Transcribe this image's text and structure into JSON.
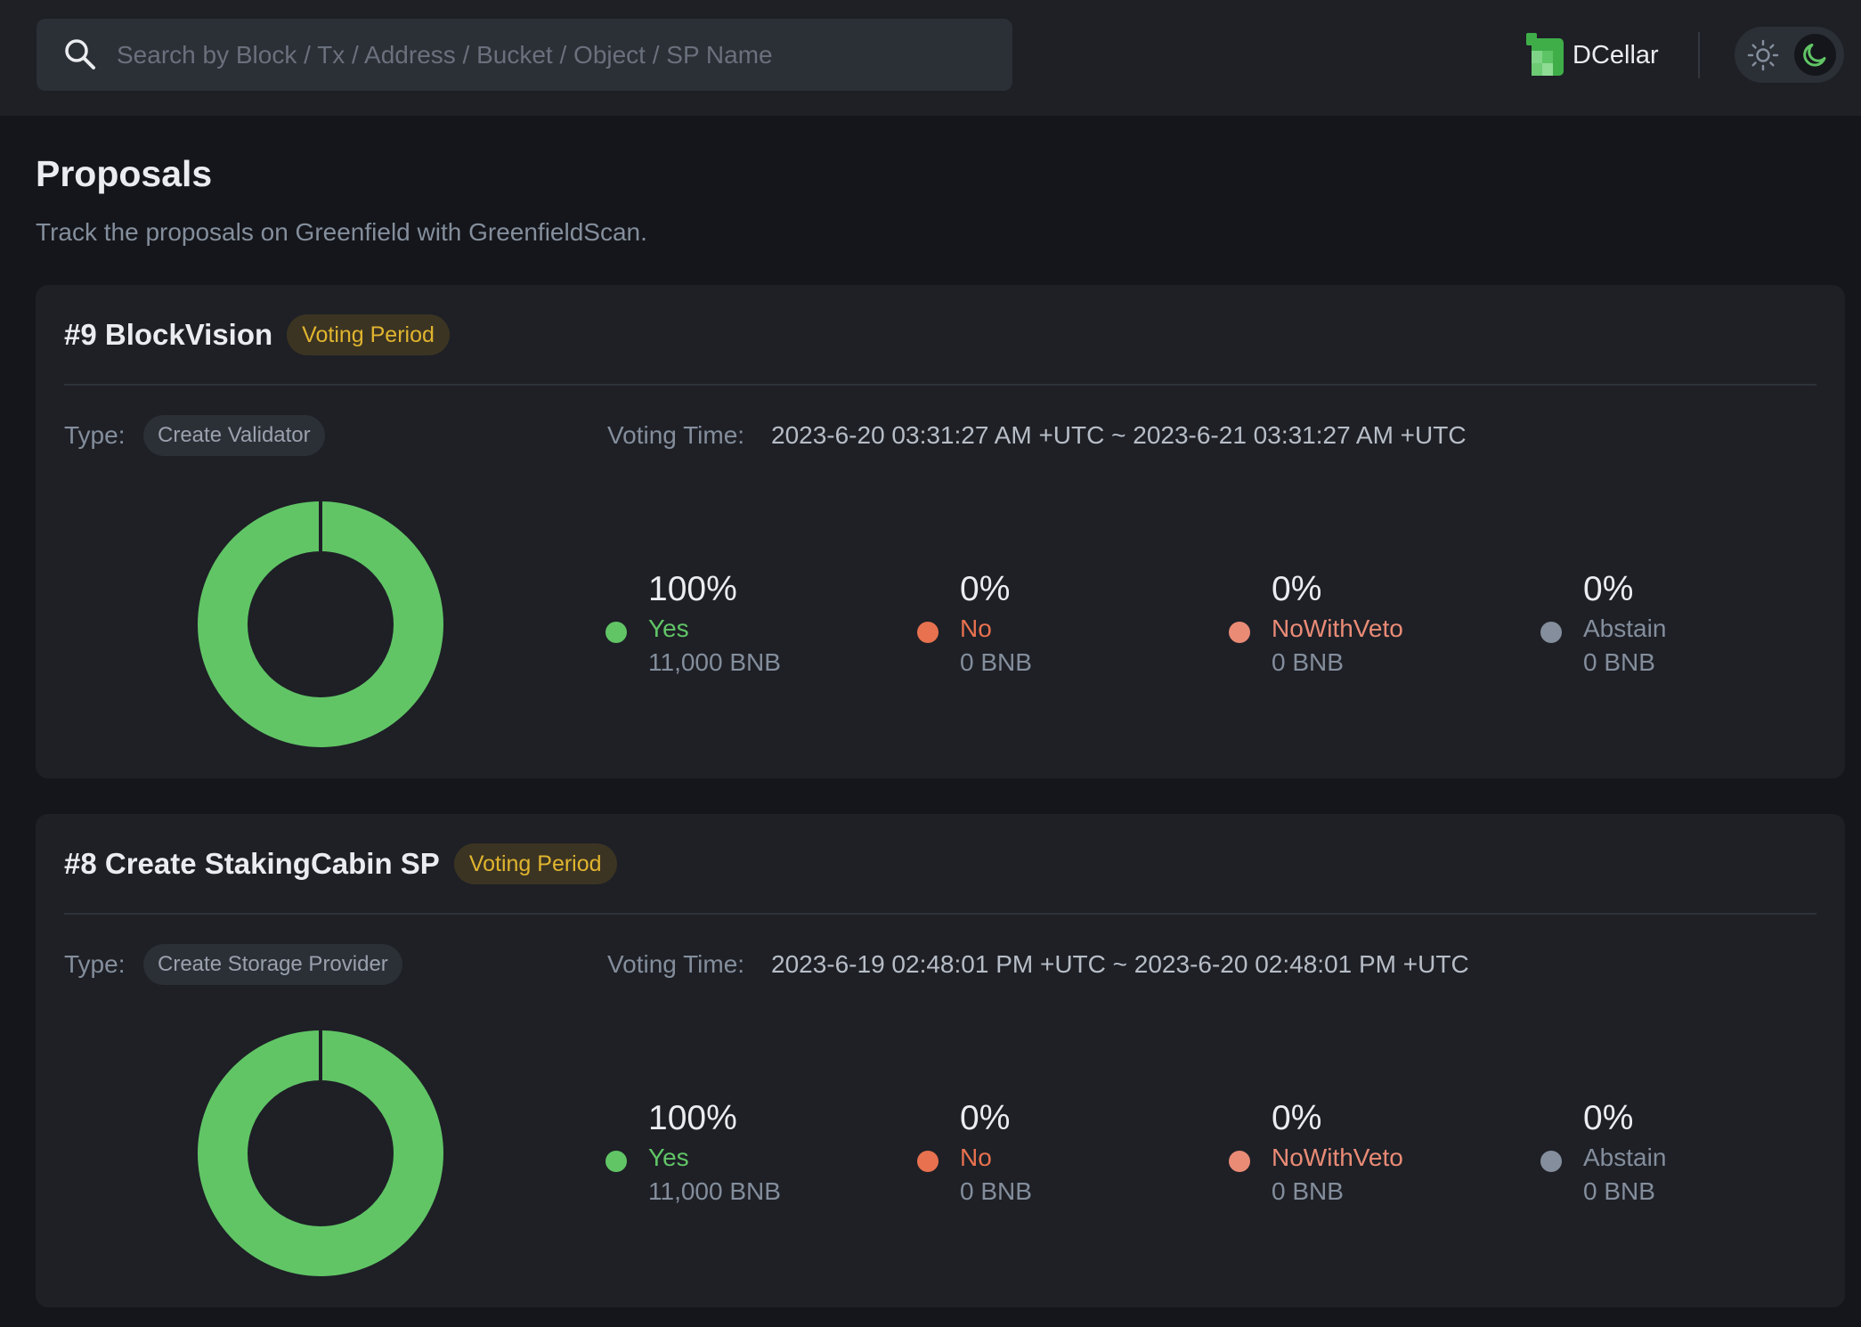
{
  "search": {
    "placeholder": "Search by Block / Tx / Address / Bucket / Object / SP Name",
    "icon": "search-icon"
  },
  "header": {
    "brand_name": "DCellar",
    "theme_toggle": {
      "light_icon": "sun-icon",
      "dark_icon": "moon-icon",
      "active": "dark"
    }
  },
  "page": {
    "title": "Proposals",
    "subtitle": "Track the proposals on Greenfield with GreenfieldScan."
  },
  "labels": {
    "type": "Type:",
    "voting_time": "Voting Time:"
  },
  "colors": {
    "yes": "#61c566",
    "no": "#e8714f",
    "no_with_veto": "#ea8b76",
    "abstain": "#848e9c",
    "badge_text": "#e0b52f",
    "background": "#14161b",
    "card": "#1e2026"
  },
  "proposals": [
    {
      "title": "#9 BlockVision",
      "status": "Voting Period",
      "type": "Create Validator",
      "voting_time": "2023-6-20 03:31:27 AM +UTC ~ 2023-6-21 03:31:27 AM +UTC",
      "votes": [
        {
          "key": "yes",
          "percent": "100%",
          "label": "Yes",
          "amount": "11,000 BNB",
          "share": 1.0
        },
        {
          "key": "no",
          "percent": "0%",
          "label": "No",
          "amount": "0 BNB",
          "share": 0
        },
        {
          "key": "no_with_veto",
          "percent": "0%",
          "label": "NoWithVeto",
          "amount": "0 BNB",
          "share": 0
        },
        {
          "key": "abstain",
          "percent": "0%",
          "label": "Abstain",
          "amount": "0 BNB",
          "share": 0
        }
      ]
    },
    {
      "title": "#8 Create StakingCabin SP",
      "status": "Voting Period",
      "type": "Create Storage Provider",
      "voting_time": "2023-6-19 02:48:01 PM +UTC ~ 2023-6-20 02:48:01 PM +UTC",
      "votes": [
        {
          "key": "yes",
          "percent": "100%",
          "label": "Yes",
          "amount": "11,000 BNB",
          "share": 1.0
        },
        {
          "key": "no",
          "percent": "0%",
          "label": "No",
          "amount": "0 BNB",
          "share": 0
        },
        {
          "key": "no_with_veto",
          "percent": "0%",
          "label": "NoWithVeto",
          "amount": "0 BNB",
          "share": 0
        },
        {
          "key": "abstain",
          "percent": "0%",
          "label": "Abstain",
          "amount": "0 BNB",
          "share": 0
        }
      ]
    }
  ]
}
